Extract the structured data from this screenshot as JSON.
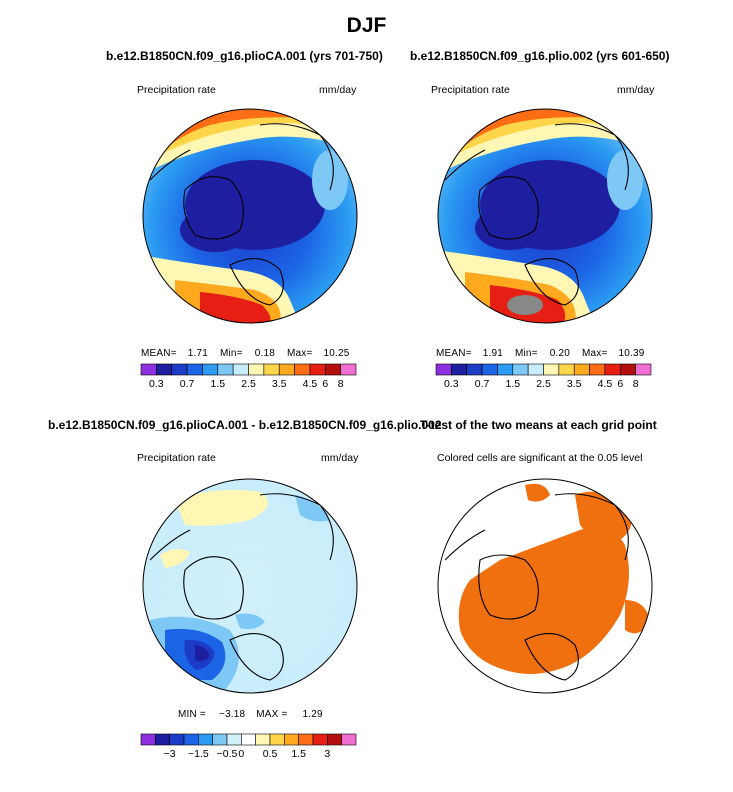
{
  "season_title": "DJF",
  "panels": {
    "p1": {
      "title": "b.e12.B1850CN.f09_g16.plioCA.001 (yrs 701-750)",
      "left_label": "Precipitation rate",
      "right_label": "mm/day",
      "stats": {
        "mean_label": "MEAN=",
        "mean": "1.71",
        "min_label": "Min=",
        "min": "0.18",
        "max_label": "Max=",
        "max": "10.25"
      }
    },
    "p2": {
      "title": "b.e12.B1850CN.f09_g16.plio.002 (yrs 601-650)",
      "left_label": "Precipitation rate",
      "right_label": "mm/day",
      "stats": {
        "mean_label": "MEAN=",
        "mean": "1.91",
        "min_label": "Min=",
        "min": "0.20",
        "max_label": "Max=",
        "max": "10.39"
      }
    },
    "p3": {
      "title": "b.e12.B1850CN.f09_g16.plioCA.001 - b.e12.B1850CN.f09_g16.plio.002",
      "left_label": "Precipitation rate",
      "right_label": "mm/day",
      "stats": {
        "min_label": "MIN =",
        "min": "−3.18",
        "max_label": "MAX =",
        "max": "1.29"
      }
    },
    "p4": {
      "title": "T-test of the two means at each grid point",
      "subtitle": "Colored cells are significant at the 0.05 level"
    }
  },
  "colorbars": {
    "precip": {
      "colors": [
        "#8e2fe0",
        "#1e1ea0",
        "#1c3cc8",
        "#1c64e6",
        "#2b9cf2",
        "#7ec8f6",
        "#c7ecfb",
        "#fff7b3",
        "#ffd54a",
        "#ffaa1e",
        "#ff6e14",
        "#e61e14",
        "#b40f0f",
        "#f06ed2"
      ],
      "tick_labels": [
        "0.3",
        "0.7",
        "1.5",
        "2.5",
        "3.5",
        "4.5",
        "6",
        "8"
      ],
      "tick_after_box": [
        1,
        3,
        5,
        7,
        9,
        11,
        12,
        13
      ]
    },
    "diff": {
      "colors": [
        "#8e2fe0",
        "#1e1ea0",
        "#1c3cc8",
        "#1c64e6",
        "#2b9cf2",
        "#7ec8f6",
        "#d2f0fa",
        "#ffffff",
        "#fff7b3",
        "#ffd54a",
        "#ffaa1e",
        "#ff6e14",
        "#e61e14",
        "#b40f0f",
        "#f06ed2"
      ],
      "tick_labels": [
        "−3",
        "−1.5",
        "−0.5",
        "0",
        "0.5",
        "1.5",
        "3"
      ],
      "tick_after_box": [
        2,
        4,
        6,
        7,
        9,
        11,
        13
      ]
    }
  },
  "chart_data": [
    {
      "type": "heatmap",
      "title": "b.e12.B1850CN.f09_g16.plioCA.001 (yrs 701-750)",
      "variable": "Precipitation rate",
      "units": "mm/day",
      "projection": "north polar stereographic",
      "mean": 1.71,
      "min": 0.18,
      "max": 10.25,
      "color_levels": [
        0.3,
        0.7,
        1.5,
        2.5,
        3.5,
        4.5,
        6,
        8
      ]
    },
    {
      "type": "heatmap",
      "title": "b.e12.B1850CN.f09_g16.plio.002 (yrs 601-650)",
      "variable": "Precipitation rate",
      "units": "mm/day",
      "projection": "north polar stereographic",
      "mean": 1.91,
      "min": 0.2,
      "max": 10.39,
      "color_levels": [
        0.3,
        0.7,
        1.5,
        2.5,
        3.5,
        4.5,
        6,
        8
      ]
    },
    {
      "type": "heatmap",
      "title": "b.e12.B1850CN.f09_g16.plioCA.001 - b.e12.B1850CN.f09_g16.plio.002",
      "variable": "Precipitation rate",
      "units": "mm/day",
      "projection": "north polar stereographic",
      "min": -3.18,
      "max": 1.29,
      "color_levels": [
        -3,
        -1.5,
        -0.5,
        0,
        0.5,
        1.5,
        3
      ]
    },
    {
      "type": "heatmap",
      "title": "T-test of the two means at each grid point",
      "note": "Colored cells are significant at the 0.05 level",
      "significance_level": 0.05
    }
  ]
}
